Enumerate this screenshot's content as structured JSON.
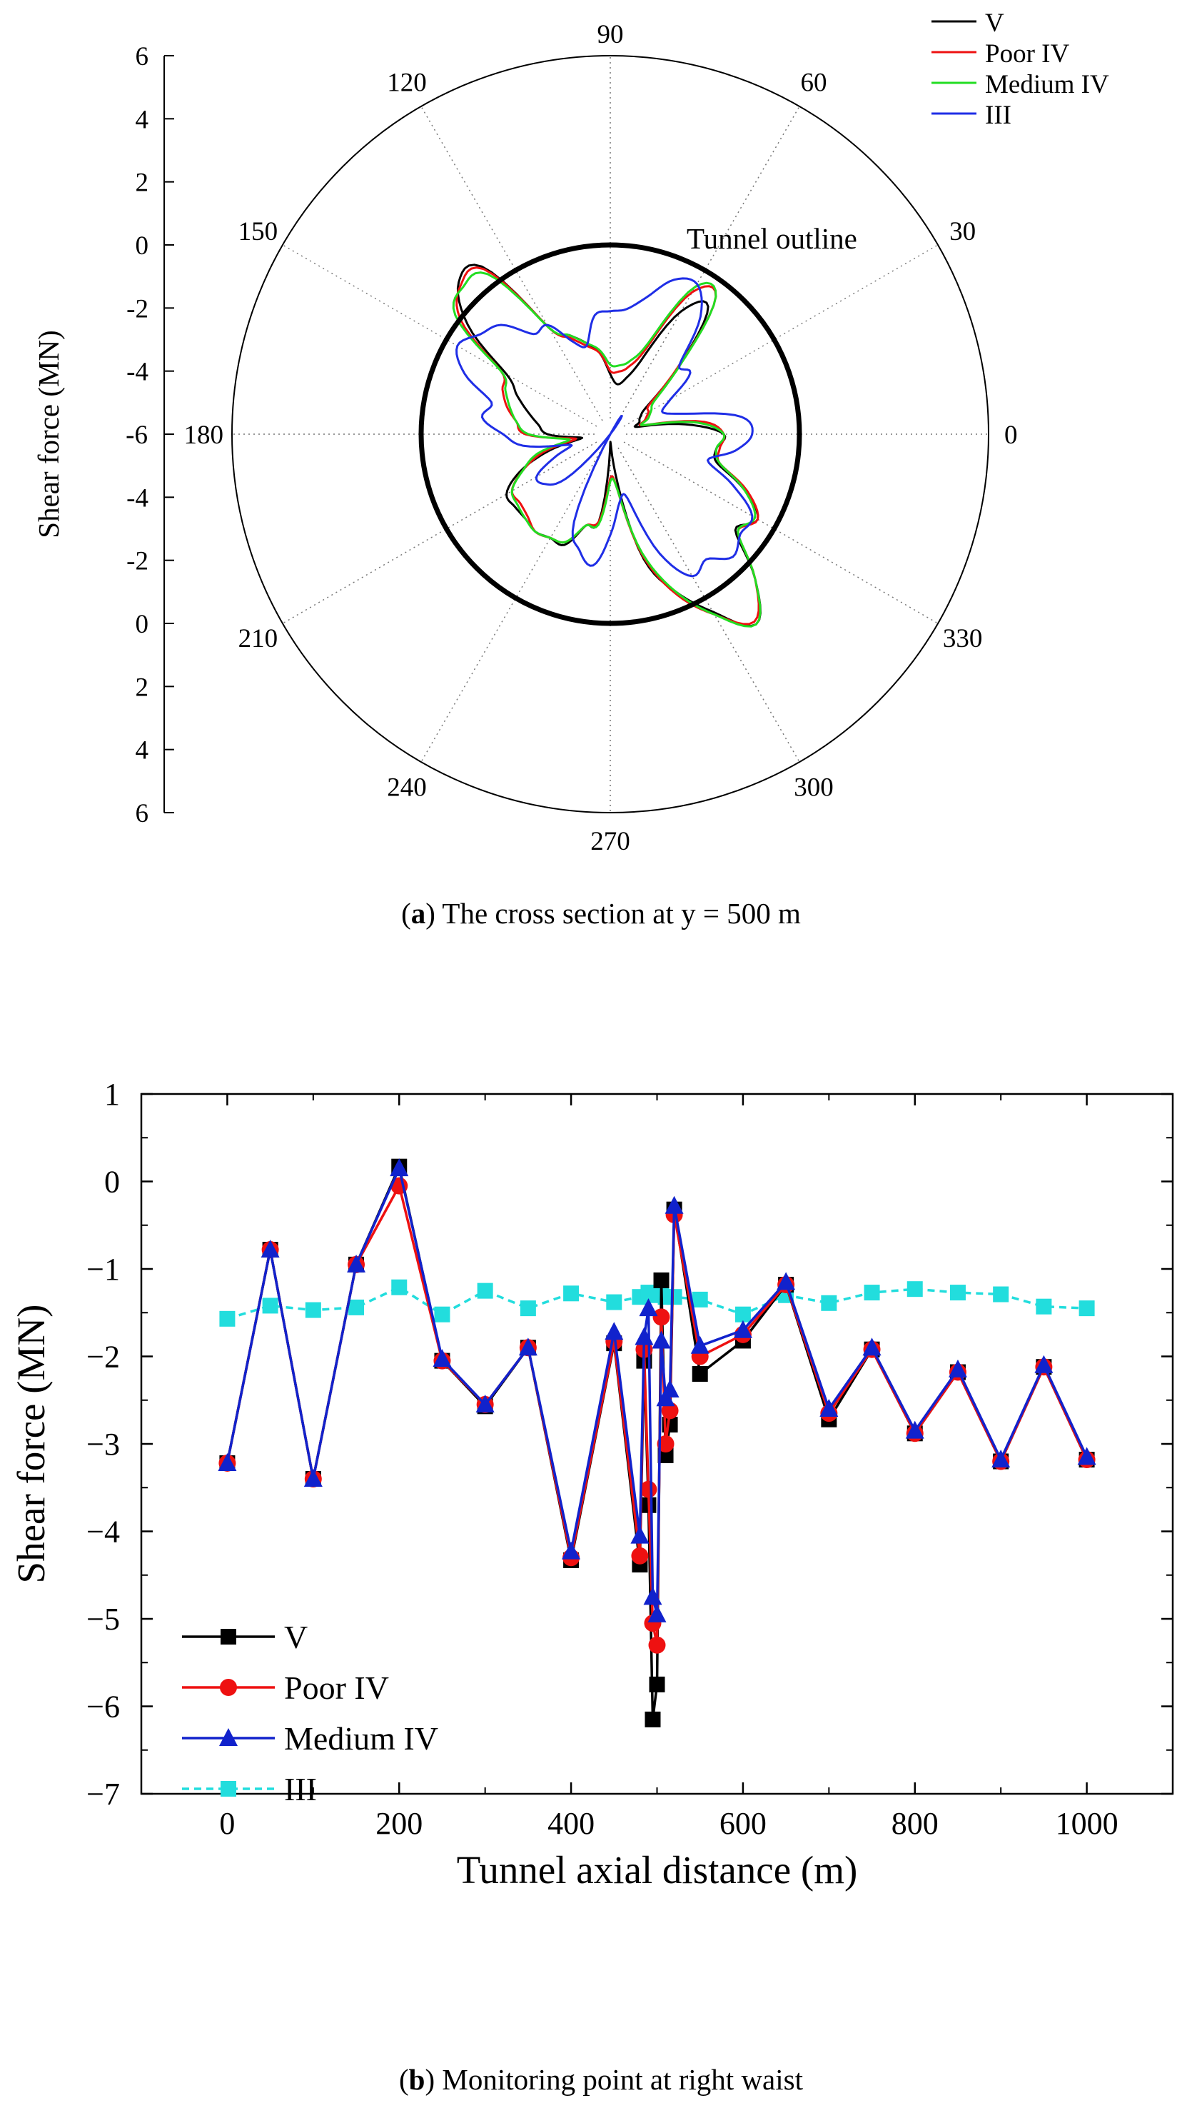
{
  "chart_data": [
    {
      "type": "line",
      "coordinate_system": "polar",
      "title": "",
      "caption_label": "a",
      "caption_text": "The cross section at y = 500 m",
      "ylabel": "Shear force (MN)",
      "radial_tick_labels": [
        "6",
        "4",
        "2",
        "0",
        "-2",
        "-4",
        "-6",
        "-4",
        "-2",
        "0",
        "2",
        "4",
        "6"
      ],
      "angle_labels": [
        "0",
        "30",
        "60",
        "90",
        "120",
        "150",
        "180",
        "210",
        "240",
        "270",
        "300",
        "330"
      ],
      "radial_range": [
        -6,
        6
      ],
      "annotation": "Tunnel outline",
      "outline_circle_value": 0,
      "legend_position": "top-right",
      "series": [
        {
          "name": "V",
          "color": "#000000",
          "values": [
            -2.4,
            -3.6,
            -5.1,
            -5.0,
            -4.9,
            -4.5,
            -2.9,
            -0.9,
            -1.5,
            -3.5,
            -4.2,
            -4.4,
            -4.1,
            -3.4,
            -3.0,
            -2.6,
            -2.1,
            0.7,
            0.8,
            -0.3,
            -2.2,
            -2.8,
            -3.3,
            -3.7,
            -4.0,
            -5.1,
            -4.0,
            -2.9,
            -2.2,
            -2.2,
            -2.2,
            -2.1,
            -2.2,
            -2.2,
            -3.0,
            -3.2,
            -5.7,
            -4.7,
            -1.9,
            -0.6,
            0.5,
            1.6,
            0.5,
            -1.0,
            -0.6,
            -1.4,
            -2.5,
            -2.6
          ]
        },
        {
          "name": "Poor IV",
          "color": "#ee1111",
          "values": [
            -2.4,
            -3.0,
            -4.9,
            -4.8,
            -4.6,
            -4.4,
            -2.9,
            -0.5,
            -0.8,
            -3.1,
            -3.8,
            -4.0,
            -4.0,
            -3.4,
            -3.1,
            -2.7,
            -2.1,
            0.6,
            0.7,
            0.0,
            -2.0,
            -2.3,
            -2.6,
            -3.0,
            -3.3,
            -4.9,
            -3.8,
            -3.0,
            -2.4,
            -2.4,
            -2.3,
            -2.1,
            -2.2,
            -2.3,
            -3.0,
            -3.2,
            -4.6,
            -4.2,
            -2.0,
            -0.5,
            0.6,
            1.5,
            0.5,
            -0.9,
            -0.6,
            -1.3,
            -2.4,
            -2.5
          ]
        },
        {
          "name": "Medium IV",
          "color": "#22dd22",
          "values": [
            -2.4,
            -3.2,
            -4.9,
            -4.7,
            -4.5,
            -4.2,
            -2.8,
            -0.5,
            -0.6,
            -2.9,
            -3.6,
            -3.8,
            -3.8,
            -3.3,
            -3.0,
            -2.6,
            -2.1,
            0.4,
            0.6,
            0.2,
            -2.0,
            -2.4,
            -2.7,
            -3.0,
            -3.4,
            -4.7,
            -3.6,
            -3.0,
            -2.4,
            -2.3,
            -2.2,
            -2.1,
            -2.2,
            -2.3,
            -3.0,
            -3.1,
            -4.5,
            -4.2,
            -2.1,
            -0.6,
            0.6,
            1.6,
            0.5,
            -0.9,
            -0.7,
            -1.4,
            -2.4,
            -2.6
          ]
        },
        {
          "name": "III",
          "color": "#1f2ee6",
          "values": [
            -1.5,
            -1.8,
            -3.5,
            -4.2,
            -3.8,
            -2.8,
            -2.9,
            -1.3,
            -0.5,
            -0.7,
            -1.5,
            -2.0,
            -2.1,
            -2.2,
            -3.1,
            -2.8,
            -2.0,
            -2.0,
            -1.1,
            -0.8,
            -0.4,
            -1.0,
            -2.1,
            -1.9,
            -2.6,
            -3.2,
            -4.7,
            -4.1,
            -3.3,
            -3.4,
            -4.0,
            -6.0,
            -6.5,
            -3.0,
            -2.2,
            -1.8,
            -2.8,
            -3.8,
            -3.9,
            -1.9,
            -0.8,
            -1.0,
            -0.5,
            -0.8,
            -0.8,
            -1.8,
            -2.8,
            -2.0
          ]
        }
      ]
    },
    {
      "type": "line",
      "title": "",
      "caption_label": "b",
      "caption_text": "Monitoring point at right waist",
      "xlabel": "Tunnel axial distance (m)",
      "ylabel": "Shear force (MN)",
      "xlim": [
        -100,
        1100
      ],
      "ylim": [
        -7,
        1
      ],
      "x_ticks": [
        0,
        200,
        400,
        600,
        800,
        1000
      ],
      "y_ticks": [
        1,
        0,
        -1,
        -2,
        -3,
        -4,
        -5,
        -6,
        -7
      ],
      "x_tick_labels": [
        "0",
        "200",
        "400",
        "600",
        "800",
        "1000"
      ],
      "y_tick_labels": [
        "1",
        "0",
        "−1",
        "−2",
        "−3",
        "−4",
        "−5",
        "−6",
        "−7"
      ],
      "legend_position": "bottom-left",
      "series": [
        {
          "name": "V",
          "color": "#000000",
          "marker": "square",
          "points": [
            [
              0,
              -3.22
            ],
            [
              50,
              -0.78
            ],
            [
              100,
              -3.4
            ],
            [
              150,
              -0.95
            ],
            [
              200,
              0.17
            ],
            [
              250,
              -2.05
            ],
            [
              300,
              -2.57
            ],
            [
              350,
              -1.9
            ],
            [
              400,
              -4.33
            ],
            [
              450,
              -1.85
            ],
            [
              480,
              -4.38
            ],
            [
              485,
              -2.05
            ],
            [
              490,
              -3.7
            ],
            [
              495,
              -6.15
            ],
            [
              500,
              -5.75
            ],
            [
              505,
              -1.13
            ],
            [
              510,
              -3.13
            ],
            [
              515,
              -2.78
            ],
            [
              520,
              -0.32
            ],
            [
              550,
              -2.2
            ],
            [
              600,
              -1.82
            ],
            [
              650,
              -1.18
            ],
            [
              700,
              -2.72
            ],
            [
              750,
              -1.92
            ],
            [
              800,
              -2.88
            ],
            [
              850,
              -2.18
            ],
            [
              900,
              -3.2
            ],
            [
              950,
              -2.12
            ],
            [
              1000,
              -3.18
            ]
          ]
        },
        {
          "name": "Poor IV",
          "color": "#ee1111",
          "marker": "circle",
          "points": [
            [
              0,
              -3.22
            ],
            [
              50,
              -0.78
            ],
            [
              100,
              -3.4
            ],
            [
              150,
              -0.95
            ],
            [
              200,
              -0.05
            ],
            [
              250,
              -2.05
            ],
            [
              300,
              -2.55
            ],
            [
              350,
              -1.9
            ],
            [
              400,
              -4.3
            ],
            [
              450,
              -1.83
            ],
            [
              480,
              -4.28
            ],
            [
              485,
              -1.92
            ],
            [
              490,
              -3.52
            ],
            [
              495,
              -5.05
            ],
            [
              500,
              -5.3
            ],
            [
              505,
              -1.55
            ],
            [
              510,
              -3.0
            ],
            [
              515,
              -2.62
            ],
            [
              520,
              -0.38
            ],
            [
              550,
              -2.0
            ],
            [
              600,
              -1.75
            ],
            [
              650,
              -1.18
            ],
            [
              700,
              -2.65
            ],
            [
              750,
              -1.92
            ],
            [
              800,
              -2.88
            ],
            [
              850,
              -2.18
            ],
            [
              900,
              -3.2
            ],
            [
              950,
              -2.12
            ],
            [
              1000,
              -3.18
            ]
          ]
        },
        {
          "name": "Medium IV",
          "color": "#1122cc",
          "marker": "triangle",
          "points": [
            [
              0,
              -3.22
            ],
            [
              50,
              -0.78
            ],
            [
              100,
              -3.4
            ],
            [
              150,
              -0.95
            ],
            [
              200,
              0.15
            ],
            [
              250,
              -2.03
            ],
            [
              300,
              -2.55
            ],
            [
              350,
              -1.9
            ],
            [
              400,
              -4.23
            ],
            [
              450,
              -1.72
            ],
            [
              480,
              -4.05
            ],
            [
              485,
              -1.78
            ],
            [
              490,
              -1.45
            ],
            [
              495,
              -4.75
            ],
            [
              500,
              -4.95
            ],
            [
              505,
              -1.82
            ],
            [
              510,
              -2.48
            ],
            [
              515,
              -2.38
            ],
            [
              520,
              -0.28
            ],
            [
              550,
              -1.88
            ],
            [
              600,
              -1.7
            ],
            [
              650,
              -1.15
            ],
            [
              700,
              -2.6
            ],
            [
              750,
              -1.9
            ],
            [
              800,
              -2.85
            ],
            [
              850,
              -2.15
            ],
            [
              900,
              -3.18
            ],
            [
              950,
              -2.1
            ],
            [
              1000,
              -3.15
            ]
          ]
        },
        {
          "name": "III",
          "color": "#22dddd",
          "marker": "square",
          "dashed": true,
          "points": [
            [
              0,
              -1.57
            ],
            [
              50,
              -1.42
            ],
            [
              100,
              -1.47
            ],
            [
              150,
              -1.44
            ],
            [
              200,
              -1.21
            ],
            [
              250,
              -1.52
            ],
            [
              300,
              -1.25
            ],
            [
              350,
              -1.45
            ],
            [
              400,
              -1.28
            ],
            [
              450,
              -1.38
            ],
            [
              480,
              -1.32
            ],
            [
              490,
              -1.27
            ],
            [
              495,
              -1.28
            ],
            [
              500,
              -1.3
            ],
            [
              505,
              -1.28
            ],
            [
              510,
              -1.32
            ],
            [
              520,
              -1.32
            ],
            [
              550,
              -1.35
            ],
            [
              600,
              -1.52
            ],
            [
              650,
              -1.3
            ],
            [
              700,
              -1.39
            ],
            [
              750,
              -1.27
            ],
            [
              800,
              -1.23
            ],
            [
              850,
              -1.27
            ],
            [
              900,
              -1.29
            ],
            [
              950,
              -1.43
            ],
            [
              1000,
              -1.45
            ]
          ]
        }
      ]
    }
  ]
}
